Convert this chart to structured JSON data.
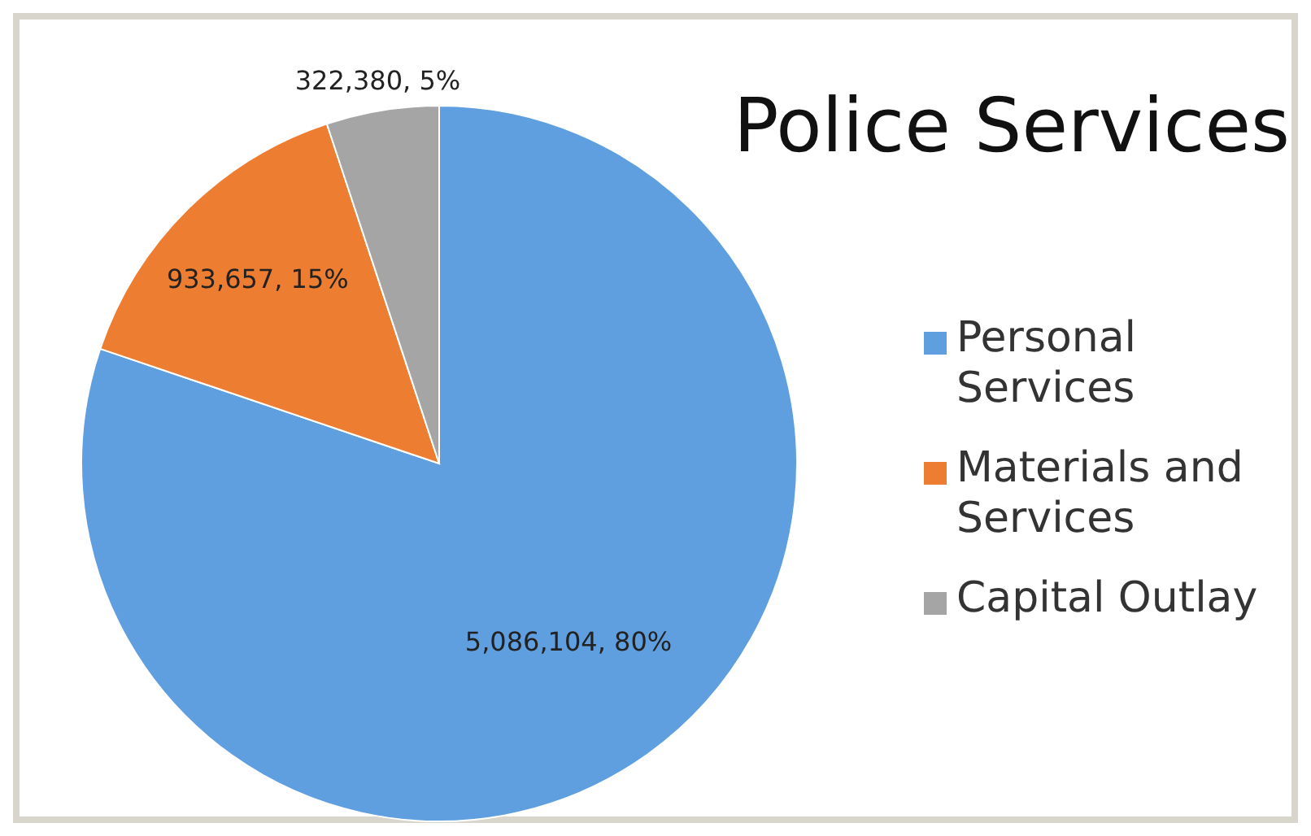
{
  "chart_data": {
    "type": "pie",
    "title": "Police Services",
    "categories": [
      "Personal Services",
      "Materials and Services",
      "Capital Outlay"
    ],
    "values": [
      5086104,
      933657,
      322380
    ],
    "colors": [
      "#5f9fdf",
      "#ed7d31",
      "#a5a5a5"
    ],
    "value_labels": [
      "5,086,104, 80%",
      "933,657, 15%",
      "322,380, 5%"
    ],
    "legend": "right"
  }
}
